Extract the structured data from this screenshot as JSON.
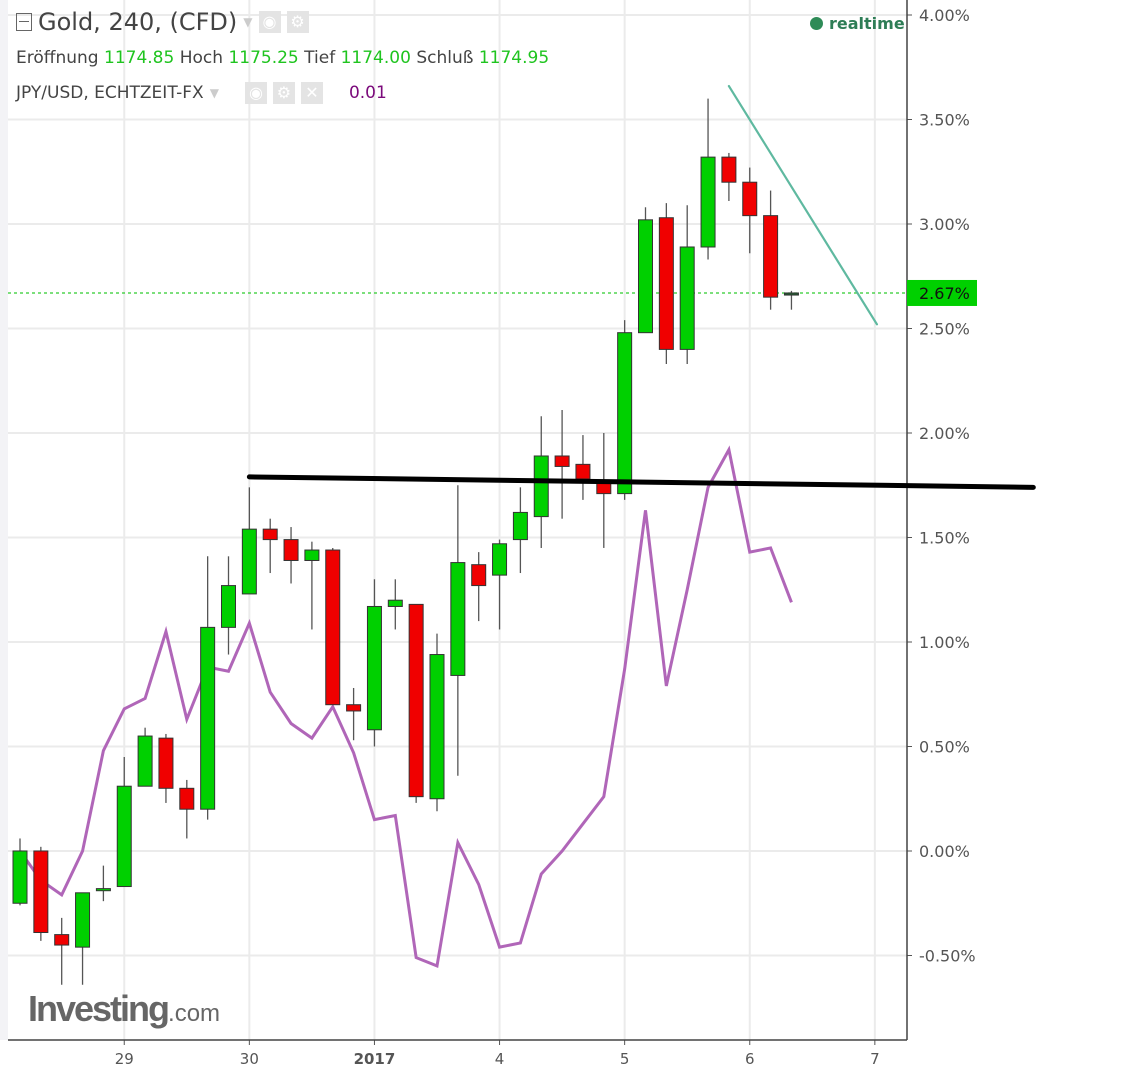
{
  "header": {
    "title": "Gold, 240, (CFD)",
    "ohlc": [
      {
        "label": "Eröffnung",
        "value": "1174.85"
      },
      {
        "label": "Hoch",
        "value": "1175.25"
      },
      {
        "label": "Tief",
        "value": "1174.00"
      },
      {
        "label": "Schluß",
        "value": "1174.95"
      }
    ],
    "compare_symbol": "JPY/USD, ECHTZEIT-FX",
    "compare_value": "0.01",
    "realtime_label": "realtime",
    "icons": [
      "collapse-icon",
      "eye-icon",
      "gear-icon",
      "close-icon",
      "chevron-down-icon"
    ]
  },
  "logo": {
    "text": "Investing",
    "suffix": ".com"
  },
  "chart_data": {
    "type": "candlestick",
    "ylabel_format": "percent",
    "ylim": [
      -0.9,
      4.05
    ],
    "yticks": [
      "4.00%",
      "3.50%",
      "3.00%",
      "2.50%",
      "2.00%",
      "1.50%",
      "1.00%",
      "0.50%",
      "0.00%",
      "-0.50%"
    ],
    "ytick_values": [
      4.0,
      3.5,
      3.0,
      2.5,
      2.0,
      1.5,
      1.0,
      0.5,
      0.0,
      -0.5
    ],
    "xticks": [
      {
        "label": "29",
        "index": 5
      },
      {
        "label": "30",
        "index": 11
      },
      {
        "label": "2017",
        "index": 17
      },
      {
        "label": "4",
        "index": 23
      },
      {
        "label": "5",
        "index": 29
      },
      {
        "label": "6",
        "index": 35
      },
      {
        "label": "7",
        "index": 41
      }
    ],
    "grid": true,
    "colors": {
      "up": "#00d000",
      "down": "#f00000",
      "compare": "#b066b8",
      "price_line": "#2ecc2e",
      "trend_black": "#000000",
      "trend_teal": "#5fb9a0"
    },
    "last_value_label": "2.67%",
    "last_value": 2.67,
    "candles_ohlc": [
      [
        -0.25,
        0.06,
        -0.26,
        0.0
      ],
      [
        0.0,
        0.02,
        -0.43,
        -0.39
      ],
      [
        -0.4,
        -0.32,
        -0.64,
        -0.45
      ],
      [
        -0.46,
        -0.2,
        -0.64,
        -0.2
      ],
      [
        -0.19,
        -0.07,
        -0.24,
        -0.18
      ],
      [
        -0.17,
        0.45,
        -0.17,
        0.31
      ],
      [
        0.31,
        0.59,
        0.31,
        0.55
      ],
      [
        0.54,
        0.56,
        0.23,
        0.3
      ],
      [
        0.3,
        0.34,
        0.06,
        0.2
      ],
      [
        0.2,
        1.41,
        0.15,
        1.07
      ],
      [
        1.07,
        1.41,
        0.94,
        1.27
      ],
      [
        1.23,
        1.74,
        1.23,
        1.54
      ],
      [
        1.54,
        1.59,
        1.33,
        1.49
      ],
      [
        1.49,
        1.55,
        1.28,
        1.39
      ],
      [
        1.39,
        1.48,
        1.06,
        1.44
      ],
      [
        1.44,
        1.45,
        0.7,
        0.7
      ],
      [
        0.7,
        0.78,
        0.53,
        0.67
      ],
      [
        0.58,
        1.3,
        0.5,
        1.17
      ],
      [
        1.17,
        1.3,
        1.06,
        1.2
      ],
      [
        1.18,
        1.18,
        0.23,
        0.26
      ],
      [
        0.25,
        1.04,
        0.19,
        0.94
      ],
      [
        0.84,
        1.75,
        0.36,
        1.38
      ],
      [
        1.37,
        1.43,
        1.1,
        1.27
      ],
      [
        1.32,
        1.49,
        1.06,
        1.47
      ],
      [
        1.49,
        1.74,
        1.33,
        1.62
      ],
      [
        1.6,
        2.08,
        1.45,
        1.89
      ],
      [
        1.89,
        2.11,
        1.59,
        1.84
      ],
      [
        1.85,
        1.99,
        1.68,
        1.78
      ],
      [
        1.76,
        2.0,
        1.45,
        1.71
      ],
      [
        1.71,
        2.54,
        1.68,
        2.48
      ],
      [
        2.48,
        3.08,
        2.48,
        3.02
      ],
      [
        3.03,
        3.1,
        2.33,
        2.4
      ],
      [
        2.4,
        3.09,
        2.33,
        2.89
      ],
      [
        2.89,
        3.6,
        2.83,
        3.32
      ],
      [
        3.32,
        3.34,
        3.11,
        3.2
      ],
      [
        3.2,
        3.27,
        2.86,
        3.04
      ],
      [
        3.04,
        3.16,
        2.59,
        2.65
      ],
      [
        2.66,
        2.68,
        2.59,
        2.67
      ]
    ],
    "compare_series": {
      "name": "JPY/USD, ECHTZEIT-FX",
      "values": [
        0.0,
        -0.14,
        -0.21,
        0.0,
        0.48,
        0.68,
        0.73,
        1.05,
        0.63,
        0.88,
        0.86,
        1.09,
        0.76,
        0.61,
        0.54,
        0.69,
        0.47,
        0.15,
        0.17,
        -0.51,
        -0.55,
        0.04,
        -0.16,
        -0.46,
        -0.44,
        -0.11,
        0.0,
        0.13,
        0.26,
        0.87,
        1.63,
        0.79,
        1.25,
        1.74,
        1.92,
        1.43,
        1.45,
        1.19
      ]
    },
    "drawings": [
      {
        "type": "trendline",
        "color": "#000000",
        "from": [
          11,
          1.79
        ],
        "to": [
          48.6,
          1.74
        ]
      },
      {
        "type": "trendline",
        "color": "#5fb9a0",
        "from": [
          34,
          3.66
        ],
        "to": [
          41.1,
          2.52
        ]
      }
    ]
  }
}
